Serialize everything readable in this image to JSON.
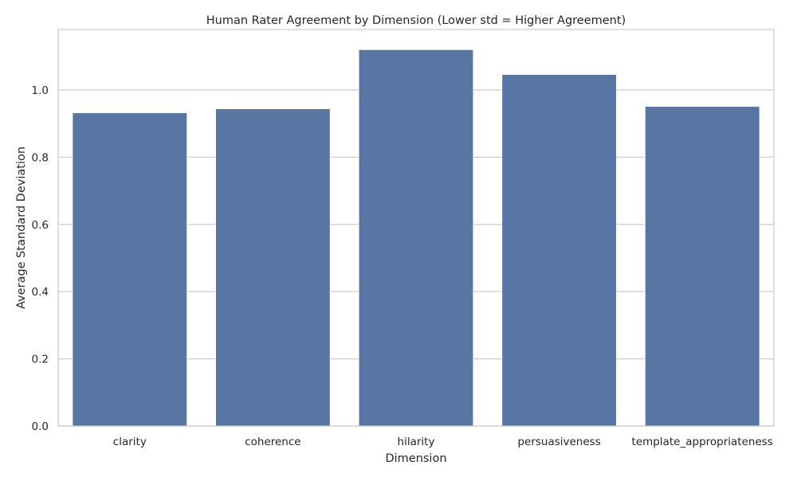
{
  "chart_data": {
    "type": "bar",
    "title": "Human Rater Agreement by Dimension (Lower std = Higher Agreement)",
    "xlabel": "Dimension",
    "ylabel": "Average Standard Deviation",
    "categories": [
      "clarity",
      "coherence",
      "hilarity",
      "persuasiveness",
      "template_appropriateness"
    ],
    "values": [
      0.932,
      0.944,
      1.12,
      1.046,
      0.951
    ],
    "ylim": [
      0,
      1.18
    ],
    "yticks": [
      0.0,
      0.2,
      0.4,
      0.6,
      0.8,
      1.0
    ],
    "ytick_labels": [
      "0.0",
      "0.2",
      "0.4",
      "0.6",
      "0.8",
      "1.0"
    ],
    "grid": true,
    "colors": {
      "bar": "#5975a4",
      "grid": "#cccccc",
      "spine": "#cccccc",
      "background": "#ffffff"
    }
  }
}
